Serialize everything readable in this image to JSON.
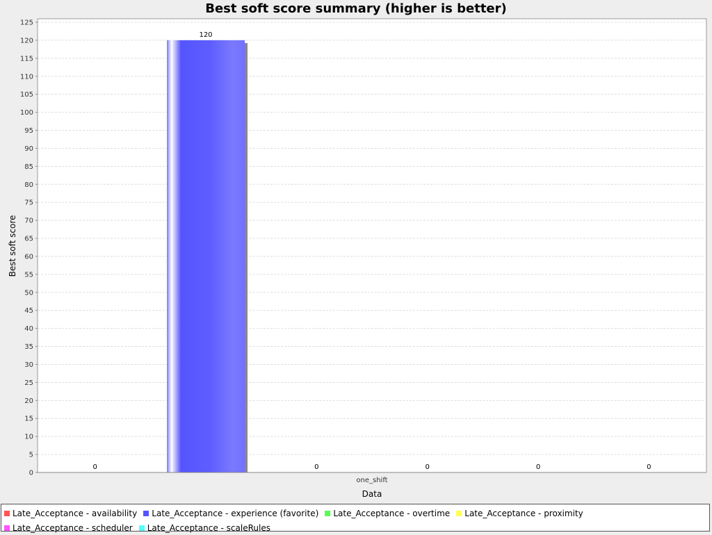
{
  "chart_data": {
    "type": "bar",
    "title": "Best soft score summary (higher is better)",
    "xlabel": "Data",
    "ylabel": "Best soft score",
    "categories": [
      "one_shift"
    ],
    "ylim": [
      0,
      125
    ],
    "ytick_step": 5,
    "grid": true,
    "legend_position": "bottom",
    "series": [
      {
        "name": "Late_Acceptance - availability",
        "values": [
          0
        ],
        "color": "#ff5555"
      },
      {
        "name": "Late_Acceptance - experience (favorite)",
        "values": [
          120
        ],
        "color": "#5555ff"
      },
      {
        "name": "Late_Acceptance - overtime",
        "values": [
          0
        ],
        "color": "#55ff55"
      },
      {
        "name": "Late_Acceptance - proximity",
        "values": [
          0
        ],
        "color": "#ffff55"
      },
      {
        "name": "Late_Acceptance - scheduler",
        "values": [
          0
        ],
        "color": "#ff55ff"
      },
      {
        "name": "Late_Acceptance - scaleRules",
        "values": [
          0
        ],
        "color": "#55ffff"
      }
    ]
  }
}
